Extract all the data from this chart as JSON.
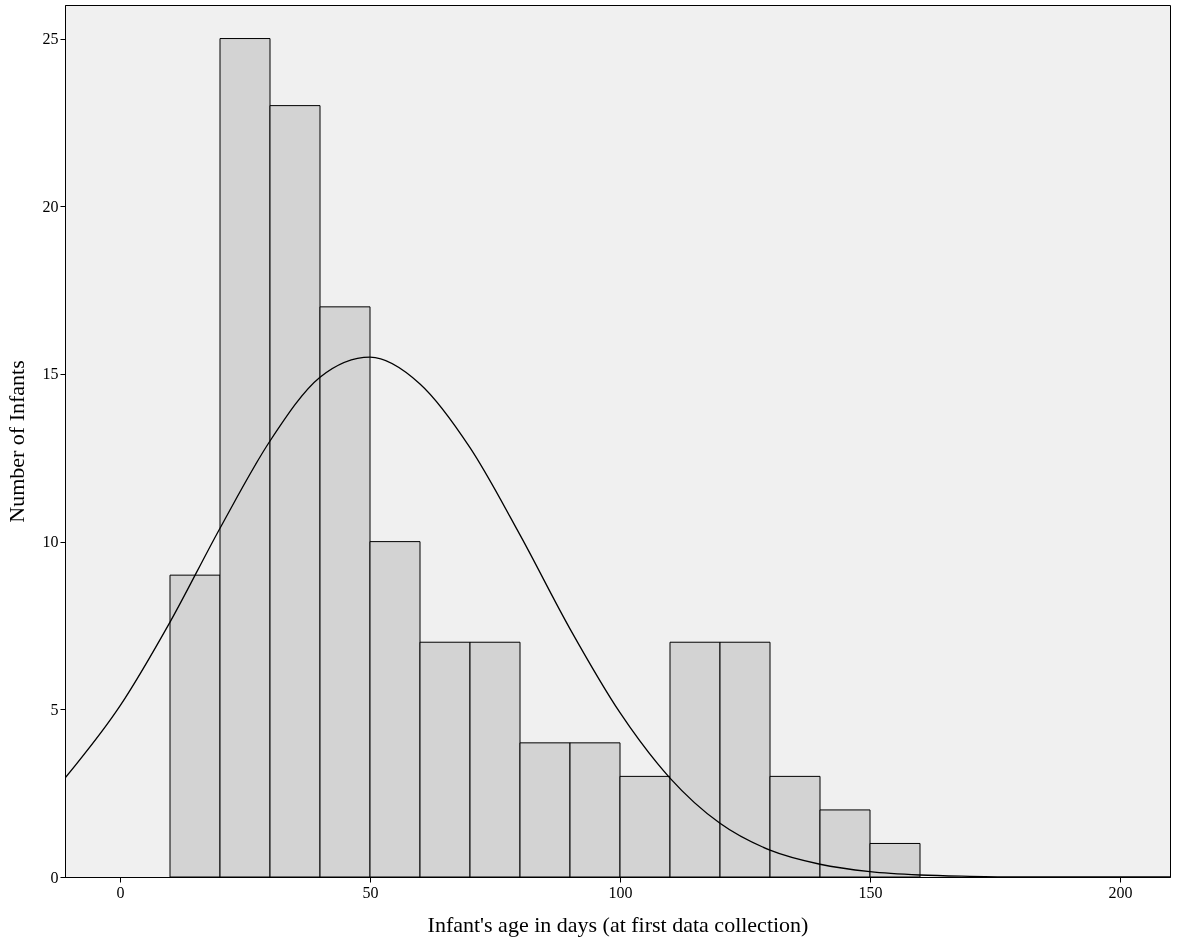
{
  "chart_data": {
    "type": "histogram",
    "xlabel": "Infant's age in days (at first data collection)",
    "ylabel": "Number of Infants",
    "bins": [
      10,
      20,
      30,
      40,
      50,
      60,
      70,
      80,
      90,
      100,
      110,
      120,
      130,
      140,
      150,
      160
    ],
    "values": [
      9,
      25,
      23,
      17,
      10,
      7,
      7,
      4,
      4,
      3,
      7,
      7,
      3,
      2,
      1
    ],
    "color": "#d3d3d3",
    "series": [
      {
        "type": "line",
        "color": "#000000",
        "x": [
          -11,
          0,
          10,
          20,
          30,
          40,
          50,
          60,
          70,
          80,
          90,
          100,
          110,
          120,
          130,
          140,
          150,
          160,
          170,
          180,
          210
        ],
        "values": [
          2.95,
          5.1,
          7.6,
          10.4,
          13.0,
          14.9,
          15.5,
          14.7,
          12.8,
          10.2,
          7.4,
          4.9,
          2.95,
          1.6,
          0.8,
          0.38,
          0.16,
          0.06,
          0.02,
          0,
          0
        ]
      }
    ],
    "xlim": [
      -11,
      210
    ],
    "ylim": [
      0,
      26
    ],
    "xticks": [
      0,
      50,
      100,
      150,
      200
    ],
    "yticks": [
      0,
      5,
      10,
      15,
      20,
      25
    ],
    "grid": false
  }
}
